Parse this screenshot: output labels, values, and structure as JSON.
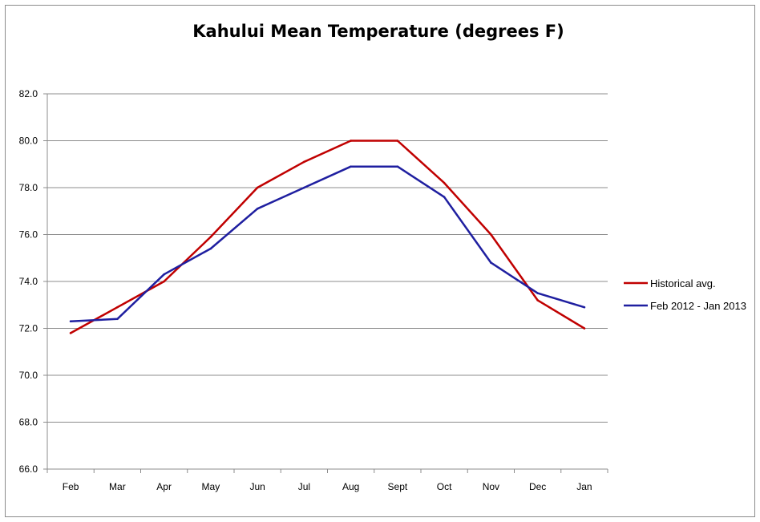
{
  "chart_data": {
    "type": "line",
    "title": "Kahului Mean Temperature (degrees F)",
    "xlabel": "",
    "ylabel": "",
    "categories": [
      "Feb",
      "Mar",
      "Apr",
      "May",
      "Jun",
      "Jul",
      "Aug",
      "Sept",
      "Oct",
      "Nov",
      "Dec",
      "Jan"
    ],
    "ylim": [
      66.0,
      82.0
    ],
    "yticks": [
      "66.0",
      "68.0",
      "70.0",
      "72.0",
      "74.0",
      "76.0",
      "78.0",
      "80.0",
      "82.0"
    ],
    "grid": true,
    "legend_position": "right",
    "series": [
      {
        "name": "Historical avg.",
        "color": "#c00000",
        "values": [
          71.8,
          72.9,
          74.0,
          75.9,
          78.0,
          79.1,
          80.0,
          80.0,
          78.2,
          76.0,
          73.2,
          72.0
        ]
      },
      {
        "name": "Feb 2012 - Jan 2013",
        "color": "#1f1fa0",
        "values": [
          72.3,
          72.4,
          74.3,
          75.4,
          77.1,
          78.0,
          78.9,
          78.9,
          77.6,
          74.8,
          73.5,
          72.9
        ]
      }
    ]
  }
}
